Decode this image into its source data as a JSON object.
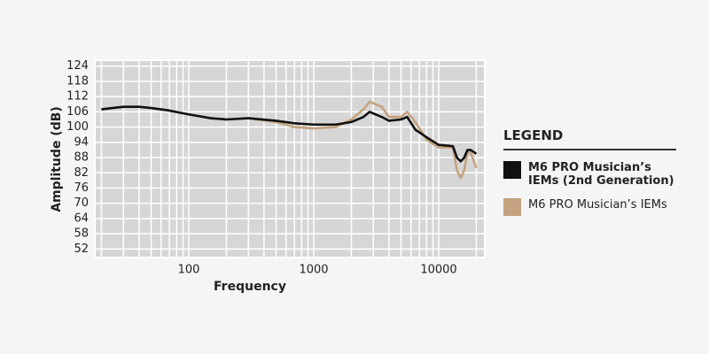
{
  "chart_data": {
    "type": "line",
    "x_label": "Frequency",
    "y_label": "Amplitude (dB)",
    "x": [
      20,
      30,
      40,
      50,
      70,
      100,
      150,
      200,
      300,
      500,
      700,
      1000,
      1500,
      2000,
      2500,
      2800,
      3500,
      4000,
      5000,
      5600,
      6500,
      8000,
      10000,
      13000,
      14000,
      15000,
      16000,
      17000,
      18000,
      20000
    ],
    "series": [
      {
        "name": "M6 PRO Musician’s IEMs (2nd Generation)",
        "color": "#111111",
        "values": [
          107,
          108,
          108,
          107.5,
          106.5,
          105,
          103.5,
          103,
          103.5,
          102.5,
          101.5,
          101,
          101,
          102,
          104,
          106,
          104,
          102.5,
          103,
          104,
          99,
          96,
          93,
          92.5,
          88,
          86.5,
          88,
          91,
          91,
          89.5
        ]
      },
      {
        "name": "M6 PRO Musician’s IEMs",
        "color": "#c4a27f",
        "values": [
          107,
          108,
          108,
          107.5,
          106.5,
          105,
          103.5,
          103,
          103.5,
          102,
          100,
          99.5,
          100,
          103,
          107,
          110,
          108,
          104,
          104,
          106,
          102,
          95,
          92,
          92,
          83,
          80,
          83,
          90,
          90,
          84
        ]
      }
    ],
    "xscale": "log",
    "xlim": [
      18,
      23000
    ],
    "xticks": [
      100,
      1000,
      10000
    ],
    "ylim": [
      49,
      126
    ],
    "yticks": [
      52,
      58,
      64,
      70,
      76,
      82,
      88,
      94,
      100,
      106,
      112,
      118,
      124
    ],
    "grid": true,
    "legend_title": "LEGEND",
    "legend_position": "right"
  }
}
